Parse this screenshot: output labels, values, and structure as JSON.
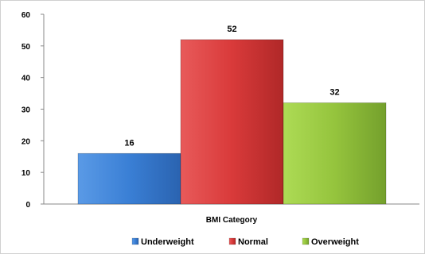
{
  "chart_data": {
    "type": "bar",
    "xlabel": "BMI Category",
    "ylabel": "",
    "ylim": [
      0,
      60
    ],
    "yticks": [
      0,
      10,
      20,
      30,
      40,
      50,
      60
    ],
    "grid": false,
    "legend_position": "bottom",
    "series": [
      {
        "name": "Underweight",
        "value": 16,
        "color": "#3a7fd5"
      },
      {
        "name": "Normal",
        "value": 52,
        "color": "#d93a3a"
      },
      {
        "name": "Overweight",
        "value": 32,
        "color": "#95c43d"
      }
    ]
  }
}
